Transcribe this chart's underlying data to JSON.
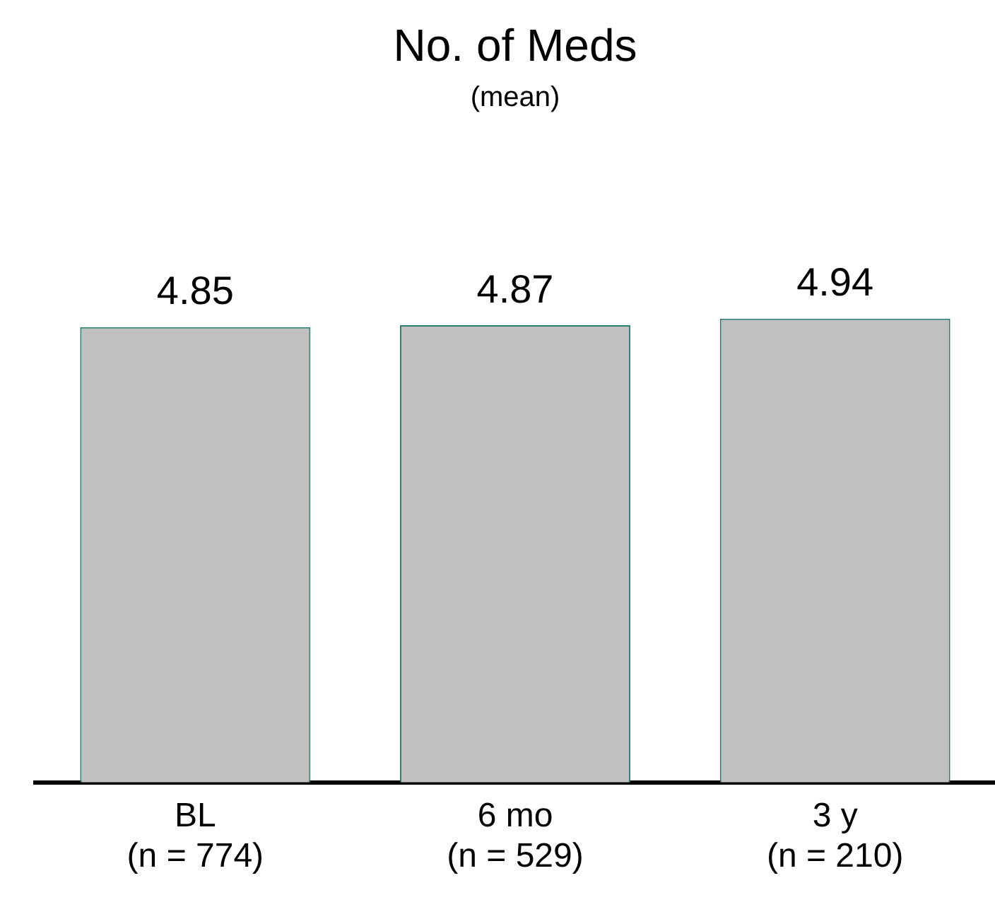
{
  "chart_data": {
    "type": "bar",
    "title": "No. of Meds",
    "subtitle": "(mean)",
    "categories": [
      "BL\n(n = 774)",
      "6 mo\n(n = 529)",
      "3 y\n(n = 210)"
    ],
    "values": [
      4.85,
      4.87,
      4.94
    ],
    "color": "#c0c0c0",
    "data_labels": true,
    "legend": false,
    "grid": false
  }
}
